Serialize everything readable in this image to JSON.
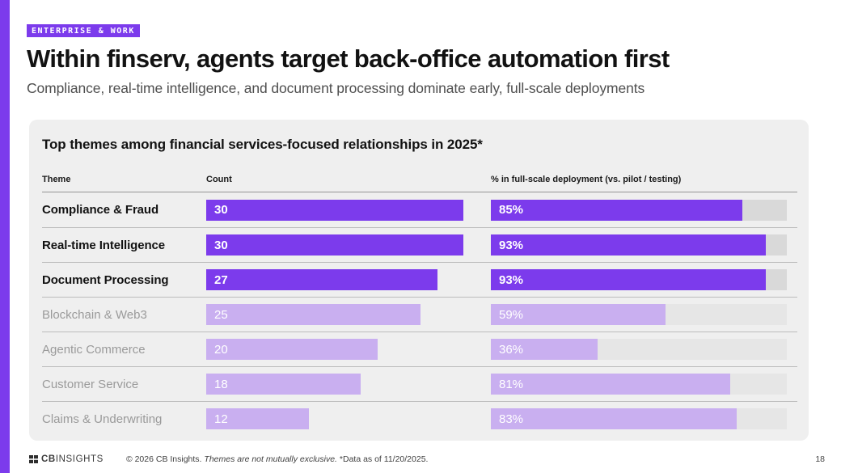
{
  "header": {
    "tag": "ENTERPRISE & WORK",
    "title": "Within finserv, agents target back-office automation first",
    "subtitle": "Compliance, real-time intelligence, and document processing dominate early, full-scale deployments"
  },
  "table": {
    "title": "Top themes among financial services-focused relationships in 2025*",
    "columns": [
      "Theme",
      "Count",
      "% in full-scale deployment (vs. pilot / testing)"
    ],
    "count_scale_max": 30,
    "rows": [
      {
        "theme": "Compliance & Fraud",
        "count": 30,
        "percent": 85,
        "emphasized": true
      },
      {
        "theme": "Real-time Intelligence",
        "count": 30,
        "percent": 93,
        "emphasized": true
      },
      {
        "theme": "Document Processing",
        "count": 27,
        "percent": 93,
        "emphasized": true
      },
      {
        "theme": "Blockchain & Web3",
        "count": 25,
        "percent": 59,
        "emphasized": false
      },
      {
        "theme": "Agentic Commerce",
        "count": 20,
        "percent": 36,
        "emphasized": false
      },
      {
        "theme": "Customer Service",
        "count": 18,
        "percent": 81,
        "emphasized": false
      },
      {
        "theme": "Claims & Underwriting",
        "count": 12,
        "percent": 83,
        "emphasized": false
      }
    ]
  },
  "chart_data": {
    "type": "bar",
    "title": "Top themes among financial services-focused relationships in 2025*",
    "categories": [
      "Compliance & Fraud",
      "Real-time Intelligence",
      "Document Processing",
      "Blockchain & Web3",
      "Agentic Commerce",
      "Customer Service",
      "Claims & Underwriting"
    ],
    "series": [
      {
        "name": "Count",
        "values": [
          30,
          30,
          27,
          25,
          20,
          18,
          12
        ],
        "axis_max": 30
      },
      {
        "name": "% in full-scale deployment (vs. pilot / testing)",
        "values": [
          85,
          93,
          93,
          59,
          36,
          81,
          83
        ],
        "axis_max": 100
      }
    ],
    "emphasized_categories": [
      "Compliance & Fraud",
      "Real-time Intelligence",
      "Document Processing"
    ],
    "orientation": "horizontal",
    "grid": false,
    "legend_position": "none"
  },
  "footer": {
    "logo_bold": "CB",
    "logo_light": "INSIGHTS",
    "note_copyright": "© 2026 CB Insights.",
    "note_italic": "Themes are not mutually exclusive.",
    "note_data": "*Data as of 11/20/2025.",
    "page_number": "18"
  },
  "colors": {
    "brand_purple": "#7c3bec",
    "light_purple": "#c9aff0",
    "track_emphasized": "#d9d9d9",
    "track_muted": "#e6e6e6",
    "card_bg": "#efefef",
    "muted_text": "#9a9a9a"
  }
}
